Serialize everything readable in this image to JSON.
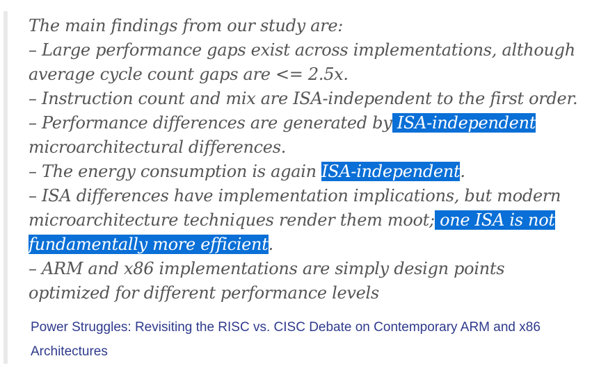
{
  "quote": {
    "intro": "The main findings from our study are:",
    "f1_a": "– Large performance gaps exist across implementations, although",
    "f1_b": "average cycle count gaps are <= 2.5x.",
    "f2": "– Instruction count and mix are ISA-independent to the first order.",
    "f3_pre": "– Performance differences are generated by",
    "f3_hl": " ISA-independent",
    "f3_b": "microarchitectural differences.",
    "f4_pre": "– The energy consumption is again ",
    "f4_hl": "ISA-independent",
    "f4_post": ".",
    "f5_a": "– ISA differences have implementation implications, but modern",
    "f5_b_pre": "microarchitecture techniques render them moot;",
    "f5_b_hl": " one ISA is not",
    "f5_c_hl": "fundamentally more efficient",
    "f5_c_post": ".",
    "f6_a": "– ARM and x86 implementations are simply design points",
    "f6_b": "optimized for different performance levels"
  },
  "citation": {
    "line1": "Power Struggles: Revisiting the RISC vs. CISC Debate on Contemporary ARM and x86",
    "line2": "Architectures"
  },
  "colors": {
    "highlight": "#0a6fd6",
    "quote_text": "#555555",
    "citation_link": "#2e3a8c",
    "quote_border": "#e9e9e9"
  }
}
